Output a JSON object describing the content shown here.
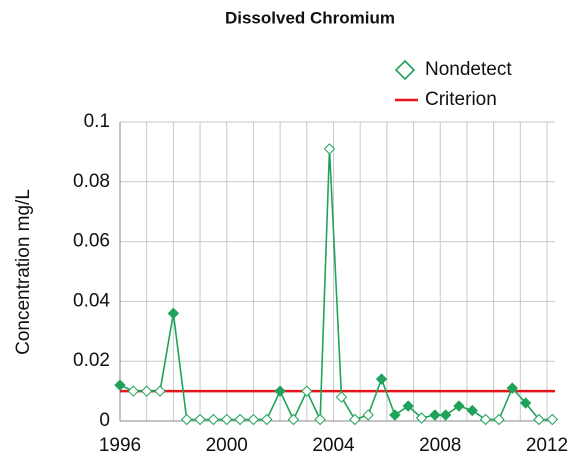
{
  "chart_data": {
    "type": "line",
    "title": "Dissolved Chromium",
    "ylabel": "Concentration mg/L",
    "xlim": [
      1996,
      2012.3
    ],
    "ylim": [
      0,
      0.1
    ],
    "xticks": [
      1996,
      2000,
      2004,
      2008,
      2012
    ],
    "xminorticks": [
      1997,
      1998,
      1999,
      2001,
      2002,
      2003,
      2005,
      2006,
      2007,
      2009,
      2010,
      2011
    ],
    "yticks": [
      0,
      0.02,
      0.04,
      0.06,
      0.08,
      0.1
    ],
    "grid": true,
    "nondetect_label": "Nondetect",
    "series": [
      {
        "color": "#1fa35a",
        "x": [
          1996.0,
          1996.5,
          1997.0,
          1997.5,
          1998.0,
          1998.5,
          1999.0,
          1999.5,
          2000.0,
          2000.5,
          2001.0,
          2001.5,
          2002.0,
          2002.5,
          2003.0,
          2003.5,
          2003.85,
          2004.3,
          2004.8,
          2005.3,
          2005.8,
          2006.3,
          2006.8,
          2007.3,
          2007.8,
          2008.2,
          2008.7,
          2009.2,
          2009.7,
          2010.2,
          2010.7,
          2011.2,
          2011.7,
          2012.2
        ],
        "values": [
          0.012,
          0.01,
          0.01,
          0.01,
          0.036,
          0.0005,
          0.0005,
          0.0005,
          0.0005,
          0.0005,
          0.0005,
          0.0005,
          0.01,
          0.0005,
          0.01,
          0.0005,
          0.091,
          0.008,
          0.0005,
          0.002,
          0.014,
          0.002,
          0.005,
          0.001,
          0.002,
          0.002,
          0.005,
          0.0035,
          0.0005,
          0.0005,
          0.011,
          0.006,
          0.0005,
          0.0005
        ],
        "nondetect": [
          false,
          true,
          true,
          true,
          false,
          true,
          true,
          true,
          true,
          true,
          true,
          true,
          false,
          true,
          true,
          true,
          true,
          true,
          true,
          true,
          false,
          false,
          false,
          true,
          false,
          false,
          false,
          false,
          true,
          true,
          false,
          false,
          true,
          true
        ]
      }
    ],
    "criterion": {
      "name": "Criterion",
      "value": 0.01,
      "color": "#e8141b"
    }
  }
}
